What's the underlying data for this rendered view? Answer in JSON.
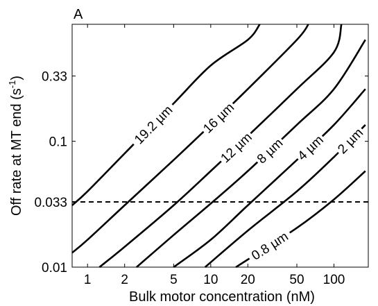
{
  "chart_data": {
    "type": "line",
    "panel_label": "A",
    "xlabel": "Bulk motor concentration (nM)",
    "ylabel_main": "Off rate at MT end (s",
    "ylabel_sup": "-1",
    "ylabel_close": ")",
    "x_scale": "log",
    "y_scale": "log",
    "xlim": [
      0.75,
      190
    ],
    "ylim": [
      0.01,
      0.85
    ],
    "x_ticks": [
      1,
      2,
      5,
      10,
      20,
      50,
      100
    ],
    "x_tick_labels": [
      "1",
      "2",
      "5",
      "10",
      "20",
      "50",
      "100"
    ],
    "y_ticks": [
      0.01,
      0.033,
      0.1,
      0.33
    ],
    "y_tick_labels": [
      "0.01",
      "0.033",
      "0.1",
      "0.33"
    ],
    "grid": false,
    "series": [
      {
        "name": "19.2 µm",
        "x": [
          0.75,
          1,
          2,
          5,
          10,
          20,
          25
        ],
        "y": [
          0.031,
          0.04,
          0.08,
          0.2,
          0.4,
          0.64,
          0.85
        ]
      },
      {
        "name": "16 µm",
        "x": [
          0.75,
          1,
          2,
          5,
          10,
          20,
          50,
          62
        ],
        "y": [
          0.013,
          0.0165,
          0.031,
          0.071,
          0.135,
          0.26,
          0.64,
          0.85
        ]
      },
      {
        "name": "12 µm",
        "x": [
          1.25,
          2,
          5,
          10,
          20,
          50,
          100,
          115
        ],
        "y": [
          0.01,
          0.0145,
          0.031,
          0.058,
          0.11,
          0.26,
          0.51,
          0.85
        ]
      },
      {
        "name": "8 µm",
        "x": [
          2.5,
          5,
          10,
          20,
          50,
          100,
          180
        ],
        "y": [
          0.01,
          0.018,
          0.032,
          0.058,
          0.135,
          0.26,
          0.64
        ]
      },
      {
        "name": "4 µm",
        "x": [
          5,
          10,
          20,
          50,
          100,
          180
        ],
        "y": [
          0.01,
          0.0165,
          0.031,
          0.071,
          0.135,
          0.26
        ]
      },
      {
        "name": "2 µm",
        "x": [
          9,
          20,
          50,
          100,
          180
        ],
        "y": [
          0.01,
          0.0195,
          0.04,
          0.075,
          0.135
        ]
      },
      {
        "name": "0.8 µm",
        "x": [
          16,
          20,
          50,
          100,
          180
        ],
        "y": [
          0.01,
          0.0115,
          0.0205,
          0.0345,
          0.058
        ]
      }
    ],
    "reference_line": {
      "y": 0.033,
      "style": "dashed"
    },
    "contour_labels": [
      "19.2 µm",
      "16 µm",
      "12 µm",
      "8 µm",
      "4 µm",
      "2 µm",
      "0.8 µm"
    ]
  }
}
